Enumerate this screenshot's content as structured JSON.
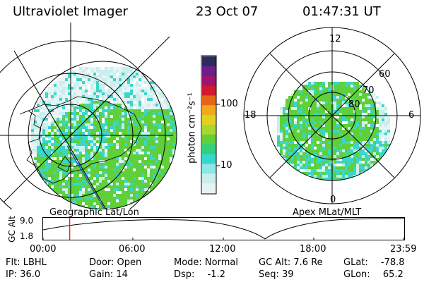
{
  "header": {
    "instrument": "Ultraviolet Imager",
    "date": "23 Oct 07",
    "time": "01:47:31 UT"
  },
  "geo_panel": {
    "caption": "Geographic Lat/Lon"
  },
  "mlt_panel": {
    "caption": "Apex MLat/MLT",
    "mlt_labels": {
      "top": "12",
      "left": "18",
      "right": "6",
      "bottom": "0"
    },
    "lat_labels": [
      "60",
      "70",
      "80"
    ]
  },
  "colorbar": {
    "unit_label": "photon cm⁻²s⁻¹",
    "tick_labels": [
      "100",
      "10"
    ],
    "colors": [
      "#2b2b5c",
      "#6b1f8a",
      "#a0136f",
      "#d01a2c",
      "#e6641a",
      "#f2a81b",
      "#e0d020",
      "#a8d830",
      "#5fcf3a",
      "#2fd080",
      "#3ad6c8",
      "#8ee6e6",
      "#c8eeee",
      "#e6f3f3"
    ]
  },
  "altitude_strip": {
    "axis_label": "GC Alt",
    "y_labels": [
      "9.0",
      "1.8"
    ],
    "x_labels": [
      "00:00",
      "06:00",
      "12:00",
      "18:00",
      "23:59"
    ],
    "current_time_fraction": 0.074
  },
  "status": {
    "filter": "Flt: LBHL",
    "ip": "IP: 36.0",
    "door": "Door: Open",
    "gain": "Gain: 14",
    "mode": "Mode: Normal",
    "dsp_label": "Dsp:",
    "dsp_value": "-1.2",
    "gc_alt": "GC Alt: 7.6 Re",
    "seq": "Seq: 39",
    "glat_label": "GLat:",
    "glat_value": "-78.8",
    "glon_label": "GLon:",
    "glon_value": "65.2"
  },
  "colors": {
    "aurora_green": "#5fcf3a",
    "aurora_teal": "#3ad6c8",
    "aurora_light": "#c8eeee",
    "time_marker": "#ff0000",
    "track_line": "#3040c0"
  }
}
